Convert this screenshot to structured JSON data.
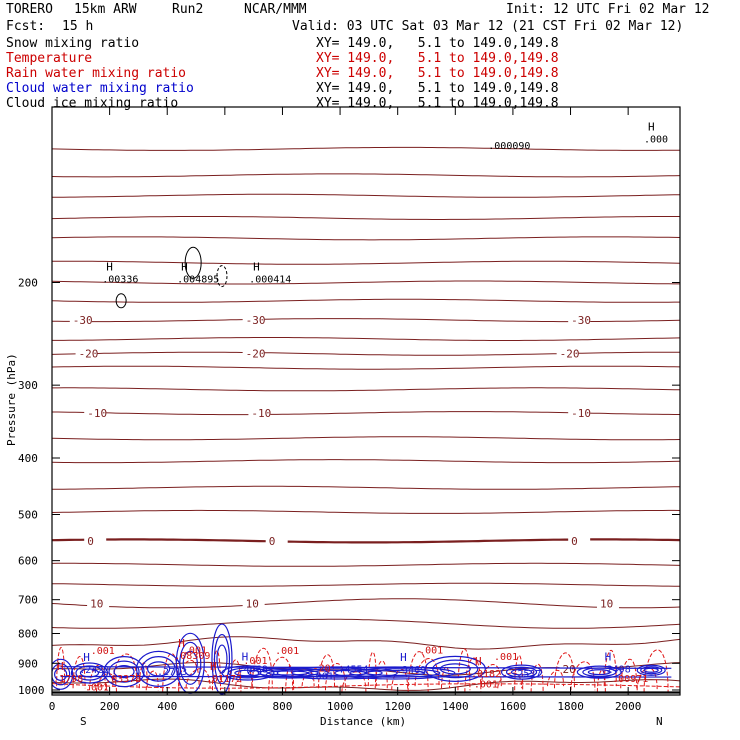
{
  "header": {
    "model": "TORERO",
    "grid": "15km ARW",
    "run": "Run2",
    "org": "NCAR/MMM",
    "fcst_label": "Fcst:",
    "fcst_value": "15 h",
    "init": "Init: 12 UTC Fri 02 Mar 12",
    "valid": "Valid: 03 UTC Sat 03 Mar 12 (21 CST Fri 02 Mar 12)"
  },
  "legend": [
    {
      "label": "Snow mixing ratio",
      "color": "#000000",
      "xy": "XY= 149.0,   5.1 to 149.0,149.8"
    },
    {
      "label": "Temperature",
      "color": "#cc0000",
      "xy": "XY= 149.0,   5.1 to 149.0,149.8"
    },
    {
      "label": "Rain water mixing ratio",
      "color": "#cc0000",
      "xy": "XY= 149.0,   5.1 to 149.0,149.8"
    },
    {
      "label": "Cloud water mixing ratio",
      "color": "#0000cc",
      "xy": "XY= 149.0,   5.1 to 149.0,149.8"
    },
    {
      "label": "Cloud ice mixing ratio",
      "color": "#000000",
      "xy": "XY= 149.0,   5.1 to 149.0,149.8"
    }
  ],
  "chart_data": {
    "type": "contour",
    "xlabel": "Distance (km)",
    "ylabel": "Pressure (hPa)",
    "xlim": [
      0,
      2180
    ],
    "ylim": [
      1020,
      100
    ],
    "y_scale": "log",
    "x_ticks": [
      0,
      200,
      400,
      600,
      800,
      1000,
      1200,
      1400,
      1600,
      1800,
      2000
    ],
    "y_ticks": [
      200,
      300,
      400,
      500,
      600,
      700,
      800,
      900,
      1000
    ],
    "endpoints": {
      "left": "S",
      "right": "N"
    },
    "temperature_labels": [
      {
        "value": "-30",
        "x": [
          100,
          700,
          1830
        ]
      },
      {
        "value": "-20",
        "x": [
          120,
          700,
          1790
        ]
      },
      {
        "value": "-10",
        "x": [
          150,
          720,
          1830
        ]
      },
      {
        "value": "0",
        "x": [
          150,
          780,
          1830
        ]
      },
      {
        "value": "10",
        "x": [
          160,
          700,
          1930
        ]
      },
      {
        "value": "20",
        "x": [
          1800
        ]
      }
    ],
    "isotherms_hPa": [
      118,
      131,
      142,
      155,
      168,
      185,
      200,
      215,
      232,
      250,
      265,
      280,
      305,
      335,
      370,
      405,
      450,
      495,
      555,
      610,
      660,
      710,
      770,
      830,
      920,
      980
    ],
    "freezing_level_hPa": 555,
    "extrema_labels": [
      {
        "marker": "H",
        "value": ".00336",
        "x": 230,
        "p": 200
      },
      {
        "marker": "H",
        "value": ".004895",
        "x": 490,
        "p": 200
      },
      {
        "marker": "H",
        "value": ".000414",
        "x": 740,
        "p": 200
      },
      {
        "marker": "H",
        "value": ".000",
        "x": 2120,
        "p": 115
      },
      {
        "marker": "",
        "value": ".000090",
        "x": 1570,
        "p": 118
      },
      {
        "marker": "",
        "value": ".001",
        "x": 190,
        "p": 868
      },
      {
        "marker": "H",
        "value": ".08309",
        "x": 480,
        "p": 885
      },
      {
        "marker": "",
        "value": ".001",
        "x": 510,
        "p": 866
      },
      {
        "marker": "",
        "value": ".001",
        "x": 830,
        "p": 868
      },
      {
        "marker": "",
        "value": ".001",
        "x": 1330,
        "p": 866
      },
      {
        "marker": "",
        "value": ".001",
        "x": 1590,
        "p": 888
      },
      {
        "marker": "",
        "value": ".001",
        "x": 720,
        "p": 903
      },
      {
        "marker": "H",
        "value": ".2422",
        "x": 150,
        "p": 935
      },
      {
        "marker": "",
        "value": ".2713",
        "x": 420,
        "p": 942
      },
      {
        "marker": "H",
        "value": ".4668",
        "x": 700,
        "p": 933
      },
      {
        "marker": "H",
        "value": ".3469",
        "x": 1250,
        "p": 935
      },
      {
        "marker": "",
        "value": ".4554",
        "x": 1050,
        "p": 933
      },
      {
        "marker": "H",
        "value": ".2498",
        "x": 1960,
        "p": 933
      },
      {
        "marker": "H",
        "value": ".1798",
        "x": 0,
        "p": 968
      },
      {
        "marker": "",
        "value": ".03378",
        "x": 240,
        "p": 968
      },
      {
        "marker": "H",
        "value": ".01172",
        "x": 590,
        "p": 968
      },
      {
        "marker": "",
        "value": ".001",
        "x": 950,
        "p": 960
      },
      {
        "marker": "H",
        "value": ".0182",
        "x": 1510,
        "p": 950
      },
      {
        "marker": "",
        "value": ".2537",
        "x": 1650,
        "p": 950
      },
      {
        "marker": "",
        "value": ".00971",
        "x": 2000,
        "p": 968
      },
      {
        "marker": "",
        "value": ".001",
        "x": 1520,
        "p": 990
      },
      {
        "marker": "",
        "value": ".001",
        "x": 170,
        "p": 1003
      },
      {
        "marker": "",
        "value": "-20",
        "x": 960,
        "p": 930
      }
    ]
  }
}
